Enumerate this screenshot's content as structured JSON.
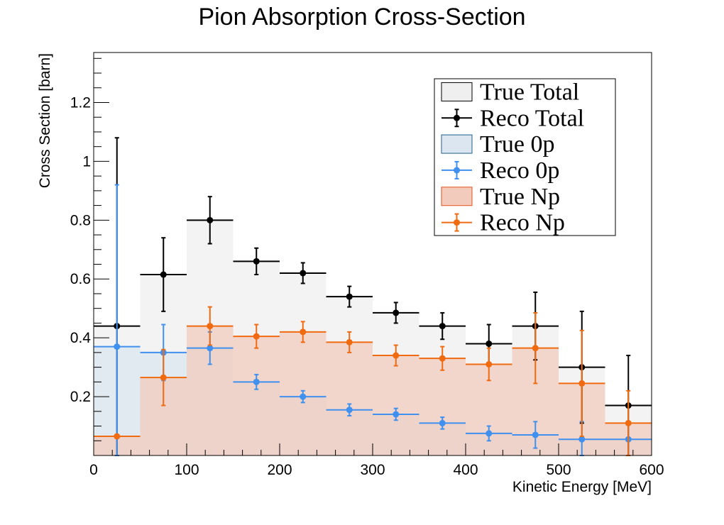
{
  "chart_data": {
    "type": "histogram",
    "title": "Pion Absorption Cross-Section",
    "xlabel": "Kinetic Energy [MeV]",
    "ylabel": "Cross Section [barn]",
    "xlim": [
      0,
      600
    ],
    "ylim": [
      0,
      1.37
    ],
    "xticks": [
      0,
      100,
      200,
      300,
      400,
      500,
      600
    ],
    "xtick_labels": [
      "0",
      "100",
      "200",
      "300",
      "400",
      "500",
      "600"
    ],
    "yticks": [
      0.2,
      0.4,
      0.6,
      0.8,
      1.0,
      1.2
    ],
    "ytick_labels": [
      "0.2",
      "0.4",
      "0.6",
      "0.8",
      "1",
      "1.2"
    ],
    "grid": false,
    "legend_position": "top-right",
    "bin_edges": [
      0,
      50,
      100,
      150,
      200,
      250,
      300,
      350,
      400,
      450,
      500,
      550,
      600
    ],
    "series": [
      {
        "name": "True Total",
        "kind": "filled-hist",
        "color": "#000000",
        "fill": "#efefef",
        "values": [
          0.44,
          0.615,
          0.8,
          0.66,
          0.62,
          0.54,
          0.485,
          0.44,
          0.38,
          0.44,
          0.3,
          0.17
        ]
      },
      {
        "name": "True 0p",
        "kind": "filled-hist",
        "color": "#1f5f8c",
        "fill": "#dbe6f0",
        "values": [
          0.37,
          0.35,
          0.365,
          0.25,
          0.2,
          0.155,
          0.14,
          0.11,
          0.075,
          0.07,
          0.055,
          0.055
        ]
      },
      {
        "name": "True Np",
        "kind": "filled-hist",
        "color": "#e84f1c",
        "fill": "#f2cbbd",
        "values": [
          0.065,
          0.265,
          0.44,
          0.405,
          0.42,
          0.385,
          0.34,
          0.33,
          0.31,
          0.365,
          0.245,
          0.11
        ]
      },
      {
        "name": "Reco Total",
        "kind": "points",
        "color": "#000000",
        "values": [
          0.44,
          0.615,
          0.8,
          0.66,
          0.62,
          0.54,
          0.485,
          0.44,
          0.38,
          0.44,
          0.3,
          0.17
        ],
        "errors": [
          0.64,
          0.125,
          0.08,
          0.045,
          0.035,
          0.035,
          0.035,
          0.045,
          0.065,
          0.115,
          0.19,
          0.17
        ]
      },
      {
        "name": "Reco 0p",
        "kind": "points",
        "color": "#3f90ef",
        "values": [
          0.37,
          0.35,
          0.365,
          0.25,
          0.2,
          0.155,
          0.14,
          0.11,
          0.075,
          0.07,
          0.055,
          0.055
        ],
        "errors": [
          0.55,
          0.095,
          0.055,
          0.025,
          0.02,
          0.02,
          0.02,
          0.02,
          0.025,
          0.045,
          0.06,
          0.06
        ]
      },
      {
        "name": "Reco Np",
        "kind": "points",
        "color": "#f06a10",
        "values": [
          0.065,
          0.265,
          0.44,
          0.405,
          0.42,
          0.385,
          0.34,
          0.33,
          0.31,
          0.365,
          0.245,
          0.11
        ],
        "errors": [
          0.0,
          0.095,
          0.065,
          0.04,
          0.035,
          0.035,
          0.035,
          0.04,
          0.055,
          0.12,
          0.18,
          0.11
        ]
      }
    ],
    "legend": [
      {
        "label": "True Total",
        "style": "box",
        "fill": "#efefef",
        "stroke": "#000000"
      },
      {
        "label": "Reco Total",
        "style": "marker",
        "color": "#000000"
      },
      {
        "label": "True 0p",
        "style": "box",
        "fill": "#dbe6f0",
        "stroke": "#1f5f8c"
      },
      {
        "label": "Reco 0p",
        "style": "marker",
        "color": "#3f90ef"
      },
      {
        "label": "True Np",
        "style": "box",
        "fill": "#f2cbbd",
        "stroke": "#e84f1c"
      },
      {
        "label": "Reco Np",
        "style": "marker",
        "color": "#f06a10"
      }
    ]
  }
}
